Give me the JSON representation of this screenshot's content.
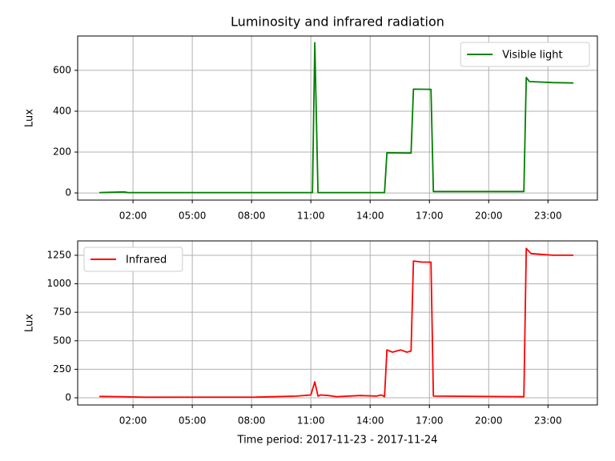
{
  "chart_data": [
    {
      "type": "line",
      "title": "Luminosity and infrared radiation",
      "ylabel": "Lux",
      "xlim": [
        -0.8,
        25.5
      ],
      "ylim": [
        -35,
        768
      ],
      "xticks": [
        {
          "value": 2,
          "label": "02:00"
        },
        {
          "value": 5,
          "label": "05:00"
        },
        {
          "value": 8,
          "label": "08:00"
        },
        {
          "value": 11,
          "label": "11:00"
        },
        {
          "value": 14,
          "label": "14:00"
        },
        {
          "value": 17,
          "label": "17:00"
        },
        {
          "value": 20,
          "label": "20:00"
        },
        {
          "value": 23,
          "label": "23:00"
        }
      ],
      "yticks": [
        0,
        200,
        400,
        600
      ],
      "grid": true,
      "legend": "upper right",
      "series": [
        {
          "name": "Visible light",
          "color": "#008000",
          "x": [
            0.3,
            1.55,
            1.75,
            11.08,
            11.2,
            11.36,
            14.73,
            14.85,
            16.07,
            16.19,
            17.08,
            17.2,
            21.78,
            21.9,
            22.06,
            23.24,
            24.29
          ],
          "values": [
            2,
            5,
            2,
            2,
            735,
            2,
            2,
            197,
            195,
            508,
            507,
            7,
            7,
            565,
            545,
            540,
            538
          ]
        }
      ]
    },
    {
      "type": "line",
      "xlabel": "Time period: 2017-11-23 - 2017-11-24",
      "ylabel": "Lux",
      "xlim": [
        -0.8,
        25.5
      ],
      "ylim": [
        -63,
        1376
      ],
      "xticks": [
        {
          "value": 2,
          "label": "02:00"
        },
        {
          "value": 5,
          "label": "05:00"
        },
        {
          "value": 8,
          "label": "08:00"
        },
        {
          "value": 11,
          "label": "11:00"
        },
        {
          "value": 14,
          "label": "14:00"
        },
        {
          "value": 17,
          "label": "17:00"
        },
        {
          "value": 20,
          "label": "20:00"
        },
        {
          "value": 23,
          "label": "23:00"
        }
      ],
      "yticks": [
        0,
        250,
        500,
        750,
        1000,
        1250
      ],
      "grid": true,
      "legend": "upper left",
      "series": [
        {
          "name": "Infrared",
          "color": "#ff0000",
          "x": [
            0.3,
            1.35,
            2.57,
            8.24,
            10.27,
            11.0,
            11.2,
            11.36,
            11.49,
            11.89,
            12.3,
            13.5,
            14.32,
            14.57,
            14.73,
            14.85,
            15.13,
            15.54,
            15.86,
            16.07,
            16.19,
            16.63,
            17.08,
            17.2,
            21.78,
            21.9,
            22.14,
            23.24,
            24.29
          ],
          "values": [
            12,
            10,
            5,
            6,
            15,
            25,
            140,
            15,
            25,
            20,
            10,
            20,
            15,
            25,
            10,
            420,
            400,
            420,
            400,
            410,
            1200,
            1190,
            1190,
            15,
            10,
            1310,
            1265,
            1250,
            1250
          ]
        }
      ]
    }
  ]
}
